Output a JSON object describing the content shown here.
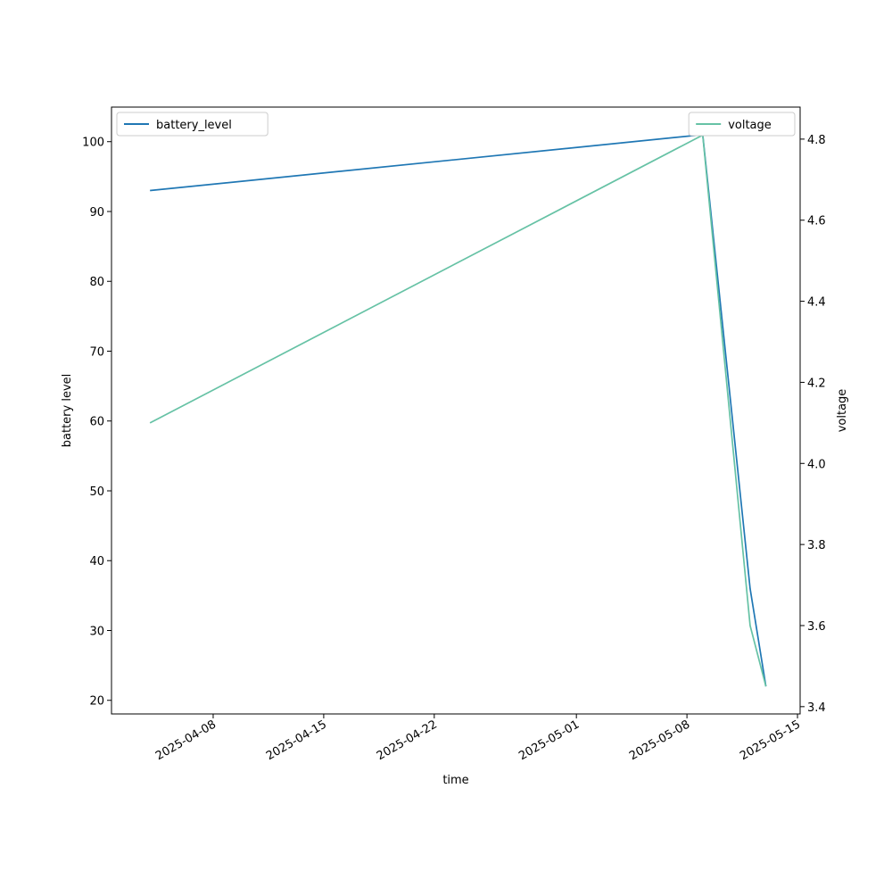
{
  "chart_data": {
    "type": "line",
    "x_label": "time",
    "y_label": "battery level",
    "y2_label": "voltage",
    "x": [
      "2025-04-04",
      "2025-05-09",
      "2025-05-12",
      "2025-05-13"
    ],
    "xlim": [
      "2025-04-01T13:30",
      "2025-05-15T04:00"
    ],
    "xticks": [
      "2025-04-08",
      "2025-04-15",
      "2025-04-22",
      "2025-05-01",
      "2025-05-08",
      "2025-05-15"
    ],
    "ylim": [
      18.05,
      104.95
    ],
    "yticks": [
      20,
      30,
      40,
      50,
      60,
      70,
      80,
      90,
      100
    ],
    "y2lim": [
      3.382,
      4.879
    ],
    "y2ticks": [
      3.4,
      3.6,
      3.8,
      {
        "value": 4,
        "label": "4.0"
      },
      4.2,
      4.4,
      4.6,
      4.8
    ],
    "series": [
      {
        "name": "battery_level",
        "color": "#1f77b4",
        "values": [
          93,
          101,
          36,
          22
        ],
        "legend": "upper left"
      },
      {
        "name": "voltage",
        "color": "#66c2a5",
        "values": [
          4.1,
          4.81,
          3.6,
          3.45
        ],
        "axis": "y2",
        "legend": "upper right"
      }
    ]
  }
}
